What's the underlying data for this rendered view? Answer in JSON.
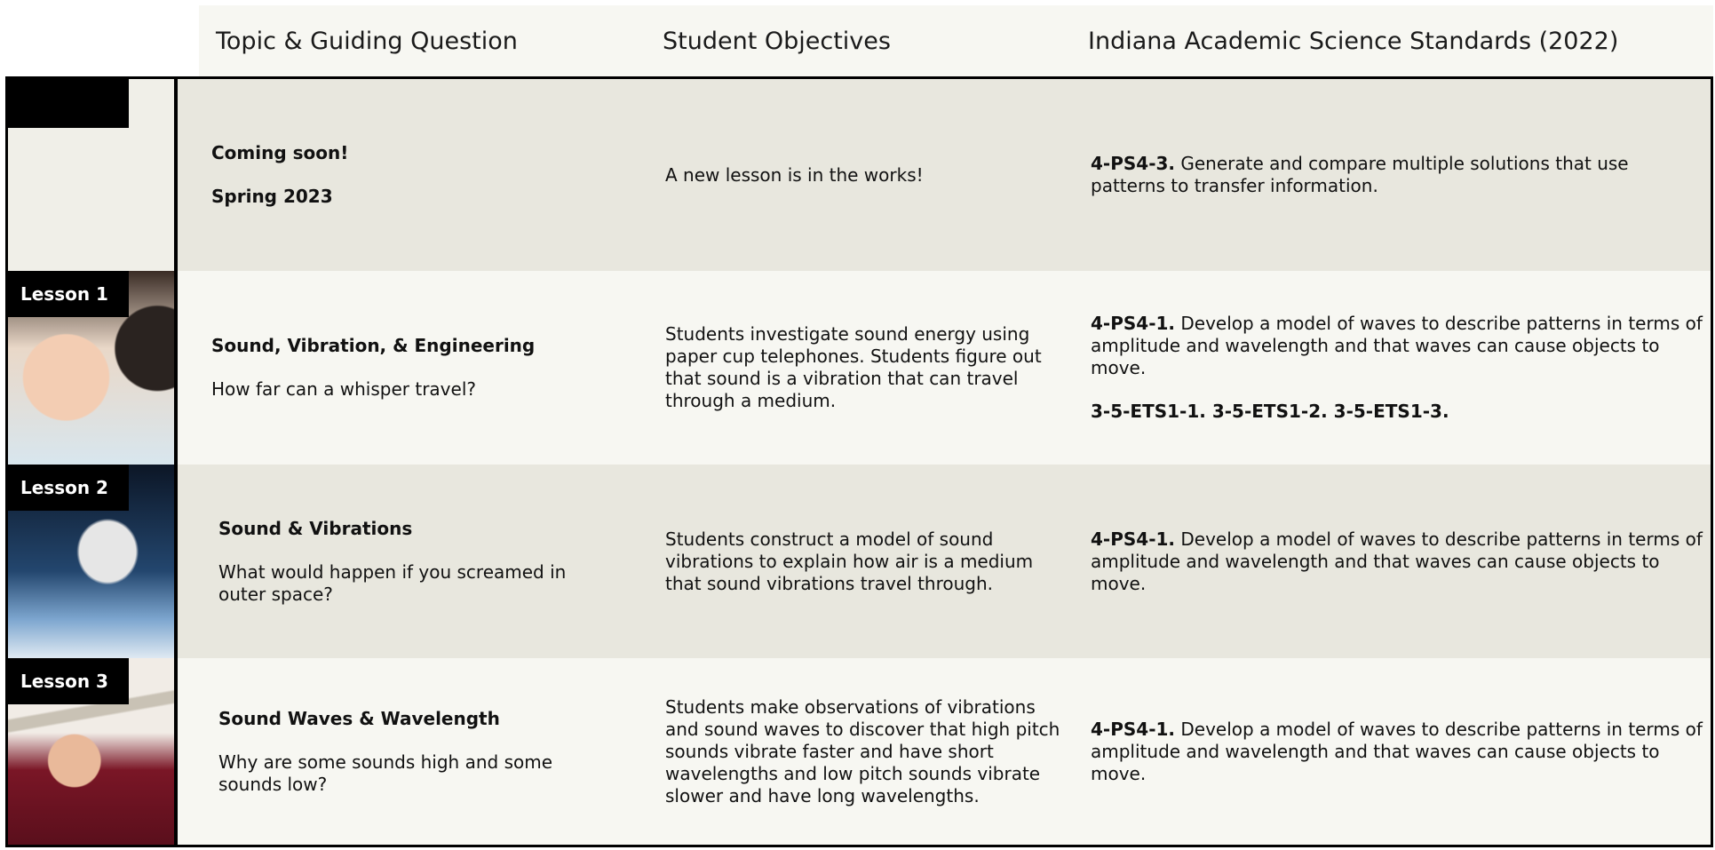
{
  "header": {
    "columns": [
      "Topic & Guiding Question",
      "Student Objectives",
      "Indiana Academic Science Standards (2022)"
    ]
  },
  "rows": [
    {
      "title": "Coming soon!",
      "subtitle": "Spring 2023",
      "objectives": "A new lesson is in the works!",
      "standards": [
        {
          "code": "4-PS4-3.",
          "text": "Generate and compare multiple solutions that use patterns to transfer information."
        }
      ]
    },
    {
      "label": "Lesson 1",
      "title": "Sound, Vibration, & Engineering",
      "subtitle": "How far can a whisper travel?",
      "objectives": "Students investigate sound energy using paper cup telephones. Students figure out that sound is a vibration that can travel through a medium.",
      "standards": [
        {
          "code": "4-PS4-1.",
          "text": "Develop a model of waves to describe patterns in terms of amplitude and wavelength and that waves can cause objects to move."
        },
        {
          "code": "3-5-ETS1-1. 3-5-ETS1-2. 3-5-ETS1-3."
        }
      ]
    },
    {
      "label": "Lesson 2",
      "title": "Sound & Vibrations",
      "subtitle": "What would happen if you screamed in outer space?",
      "objectives": "Students construct a model of sound vibrations to explain how air is a medium that sound vibrations travel through.",
      "standards": [
        {
          "code": "4-PS4-1.",
          "text": "Develop a model of waves to describe patterns in terms of amplitude and wavelength and that waves can cause objects to move."
        }
      ]
    },
    {
      "label": "Lesson 3",
      "title": "Sound Waves & Wavelength",
      "subtitle": "Why are some sounds high and some sounds low?",
      "objectives": "Students make observations of vibrations and sound waves to discover that high pitch sounds vibrate faster and have short wavelengths and low pitch sounds vibrate slower and have long wavelengths.",
      "standards": [
        {
          "code": "4-PS4-1.",
          "text": "Develop a model of waves to describe patterns in terms of amplitude and wavelength and that waves can cause objects to move."
        }
      ]
    }
  ]
}
